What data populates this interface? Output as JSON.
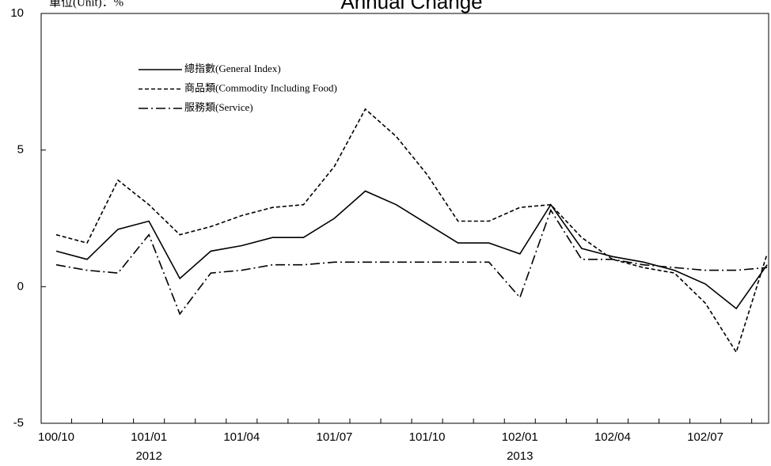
{
  "chart_data": {
    "type": "line",
    "title": "Annual Change",
    "unit_label": "單位(Unit)：%",
    "categories": [
      "100/10",
      null,
      null,
      "101/01",
      null,
      null,
      "101/04",
      null,
      null,
      "101/07",
      null,
      null,
      "101/10",
      null,
      null,
      "102/01",
      null,
      null,
      "102/04",
      null,
      null,
      "102/07",
      null,
      null
    ],
    "category_sublabels": [
      null,
      null,
      null,
      "2012",
      null,
      null,
      null,
      null,
      null,
      null,
      null,
      null,
      null,
      null,
      null,
      "2013",
      null,
      null,
      null,
      null,
      null,
      null,
      null,
      null
    ],
    "series": [
      {
        "name": "總指數(General Index)",
        "color": "#000000",
        "dash": "solid",
        "values": [
          1.3,
          1.0,
          2.1,
          2.4,
          0.3,
          1.3,
          1.5,
          1.8,
          1.8,
          2.5,
          3.5,
          3.0,
          2.3,
          1.6,
          1.6,
          1.2,
          3.0,
          1.4,
          1.1,
          0.9,
          0.6,
          0.1,
          -0.8,
          0.8
        ]
      },
      {
        "name": "商品類(Commodity Including Food)",
        "color": "#000000",
        "dash": "dashed",
        "values": [
          1.9,
          1.6,
          3.9,
          3.0,
          1.9,
          2.2,
          2.6,
          2.9,
          3.0,
          4.4,
          6.5,
          5.5,
          4.1,
          2.4,
          2.4,
          2.9,
          3.0,
          1.8,
          1.0,
          0.7,
          0.5,
          -0.6,
          -2.4,
          1.2
        ]
      },
      {
        "name": "服務類(Service)",
        "color": "#000000",
        "dash": "dashdot",
        "values": [
          0.8,
          0.6,
          0.5,
          1.9,
          -1.0,
          0.5,
          0.6,
          0.8,
          0.8,
          0.9,
          0.9,
          0.9,
          0.9,
          0.9,
          0.9,
          -0.4,
          2.8,
          1.0,
          1.0,
          0.8,
          0.7,
          0.6,
          0.6,
          0.7
        ]
      }
    ],
    "ylim": [
      -5,
      10
    ],
    "yticks": [
      -5,
      0,
      5,
      10
    ],
    "legend": "upper left",
    "grid": false
  }
}
